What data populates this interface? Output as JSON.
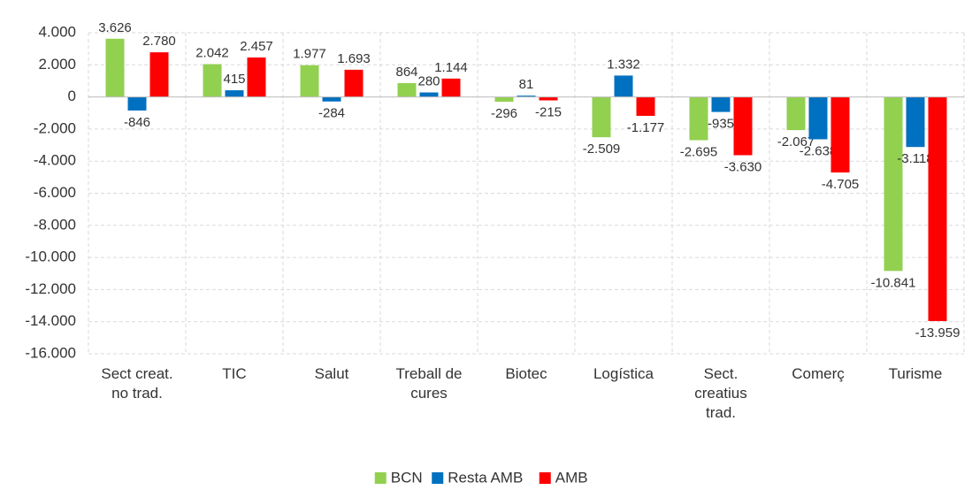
{
  "chart_data": {
    "type": "bar",
    "categories": [
      "Sect creat.\nno trad.",
      "TIC",
      "Salut",
      "Treball de\ncures",
      "Biotec",
      "Logística",
      "Sect.\ncreatius\ntrad.",
      "Comerç",
      "Turisme"
    ],
    "series": [
      {
        "name": "BCN",
        "color": "#92d050",
        "values": [
          3626,
          2042,
          1977,
          864,
          -296,
          -2509,
          -2695,
          -2067,
          -10841
        ],
        "value_labels": [
          "3.626",
          "2.042",
          "1.977",
          "864",
          "-296",
          "-2.509",
          "-2.695",
          "-2.067",
          "-10.841"
        ]
      },
      {
        "name": "Resta AMB",
        "color": "#0070c0",
        "values": [
          -846,
          415,
          -284,
          280,
          81,
          1332,
          -935,
          -2638,
          -3118
        ],
        "value_labels": [
          "-846",
          "415",
          "-284",
          "280",
          "81",
          "1.332",
          "-935",
          "-2.638",
          "-3.118"
        ]
      },
      {
        "name": "AMB",
        "color": "#ff0000",
        "values": [
          2780,
          2457,
          1693,
          1144,
          -215,
          -1177,
          -3630,
          -4705,
          -13959
        ],
        "value_labels": [
          "2.780",
          "2.457",
          "1.693",
          "1.144",
          "-215",
          "-1.177",
          "-3.630",
          "-4.705",
          "-13.959"
        ]
      }
    ],
    "ylim": [
      -16000,
      4000
    ],
    "yticks": [
      {
        "value": 4000,
        "label": "4.000"
      },
      {
        "value": 2000,
        "label": "2.000"
      },
      0,
      {
        "value": -2000,
        "label": "-2.000"
      },
      {
        "value": -4000,
        "label": "-4.000"
      },
      {
        "value": -6000,
        "label": "-6.000"
      },
      {
        "value": -8000,
        "label": "-8.000"
      },
      {
        "value": -10000,
        "label": "-10.000"
      },
      {
        "value": -12000,
        "label": "-12.000"
      },
      {
        "value": -14000,
        "label": "-14.000"
      },
      {
        "value": -16000,
        "label": "-16.000"
      }
    ],
    "grid": true,
    "legend": "bottom"
  }
}
